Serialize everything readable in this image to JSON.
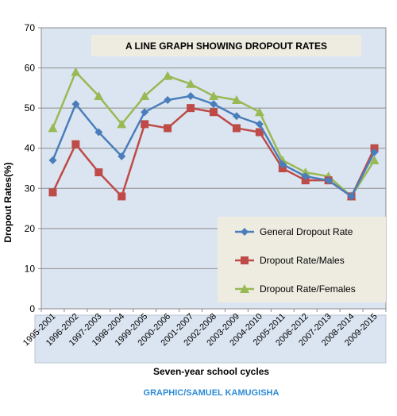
{
  "credit": "GRAPHIC/SAMUEL KAMUGISHA",
  "colors": {
    "plot_bg": "#dbe5f1",
    "grid": "#8c8c8c",
    "general": "#4a7ebb",
    "males": "#be4b48",
    "females": "#98b954",
    "credit_text": "#2e8bd6",
    "title_box": "#eeece1",
    "legend_box": "#eeece1",
    "xaxis_box": "#dbe5f1"
  },
  "chart_data": {
    "type": "line",
    "title": "A LINE GRAPH SHOWING DROPOUT RATES",
    "xlabel": "Seven-year school cycles",
    "ylabel": "Dropout  Rates(%)",
    "ylim": [
      0,
      70
    ],
    "yticks": [
      0,
      10,
      20,
      30,
      40,
      50,
      60,
      70
    ],
    "grid": true,
    "legend_position": "bottom-right",
    "categories": [
      "1995-2001",
      "1996-2002",
      "1997-2003",
      "1998-2004",
      "1999-2005",
      "2000-2006",
      "2001-2007",
      "2002-2008",
      "2003-2009",
      "2004-2010",
      "2005-2011",
      "2006-2012",
      "2007-2013",
      "2008-2014",
      "2009-2015"
    ],
    "series": [
      {
        "name": "General Dropout Rate",
        "marker": "diamond",
        "values": [
          37,
          51,
          44,
          38,
          49,
          52,
          53,
          51,
          48,
          46,
          36,
          33,
          32,
          28,
          39
        ]
      },
      {
        "name": "Dropout Rate/Males",
        "marker": "square",
        "values": [
          29,
          41,
          34,
          28,
          46,
          45,
          50,
          49,
          45,
          44,
          35,
          32,
          32,
          28,
          40
        ]
      },
      {
        "name": "Dropout Rate/Females",
        "marker": "triangle",
        "values": [
          45,
          59,
          53,
          46,
          53,
          58,
          56,
          53,
          52,
          49,
          37,
          34,
          33,
          28,
          37
        ]
      }
    ]
  }
}
